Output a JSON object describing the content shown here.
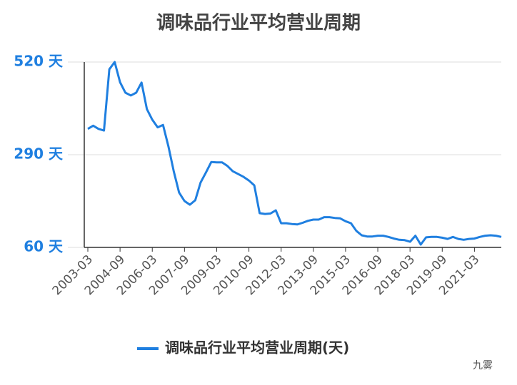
{
  "chart_data": {
    "type": "line",
    "title": "调味品行业平均营业周期",
    "categories": [
      "2003-03",
      null,
      null,
      null,
      null,
      null,
      "2004-09",
      null,
      null,
      null,
      null,
      null,
      "2006-03",
      null,
      null,
      null,
      null,
      null,
      "2007-09",
      null,
      null,
      null,
      null,
      null,
      "2009-03",
      null,
      null,
      null,
      null,
      null,
      "2010-09",
      null,
      null,
      null,
      null,
      null,
      "2012-03",
      null,
      null,
      null,
      null,
      null,
      "2013-09",
      null,
      null,
      null,
      null,
      null,
      "2015-03",
      null,
      null,
      null,
      null,
      null,
      "2016-09",
      null,
      null,
      null,
      null,
      null,
      "2018-03",
      null,
      null,
      null,
      null,
      null,
      "2019-09",
      null,
      null,
      null,
      null,
      null,
      "2021-03",
      null,
      null,
      null,
      null,
      null
    ],
    "series": [
      {
        "name": "调味品行业平均营业周期(天)",
        "color": "#1f7fe0",
        "values": [
          354,
          362,
          354,
          350,
          502,
          520,
          470,
          444,
          437,
          444,
          469,
          403,
          377,
          358,
          364,
          311,
          249,
          196,
          175,
          166,
          177,
          221,
          246,
          272,
          271,
          271,
          262,
          249,
          242,
          235,
          226,
          214,
          145,
          143,
          144,
          152,
          120,
          120,
          118,
          117,
          121,
          126,
          129,
          129,
          135,
          135,
          133,
          132,
          125,
          120,
          101,
          90,
          87,
          87,
          89,
          89,
          86,
          82,
          79,
          78,
          74,
          89,
          67,
          85,
          86,
          86,
          84,
          81,
          86,
          81,
          79,
          81,
          82,
          86,
          89,
          90,
          89,
          86
        ]
      }
    ],
    "ylim": [
      60,
      520
    ],
    "yticks": [
      {
        "value": 60,
        "label": "60 天"
      },
      {
        "value": 290,
        "label": "290 天"
      },
      {
        "value": 520,
        "label": "520 天"
      }
    ],
    "grid": true,
    "legend": "bottom",
    "watermark": "九雾"
  }
}
